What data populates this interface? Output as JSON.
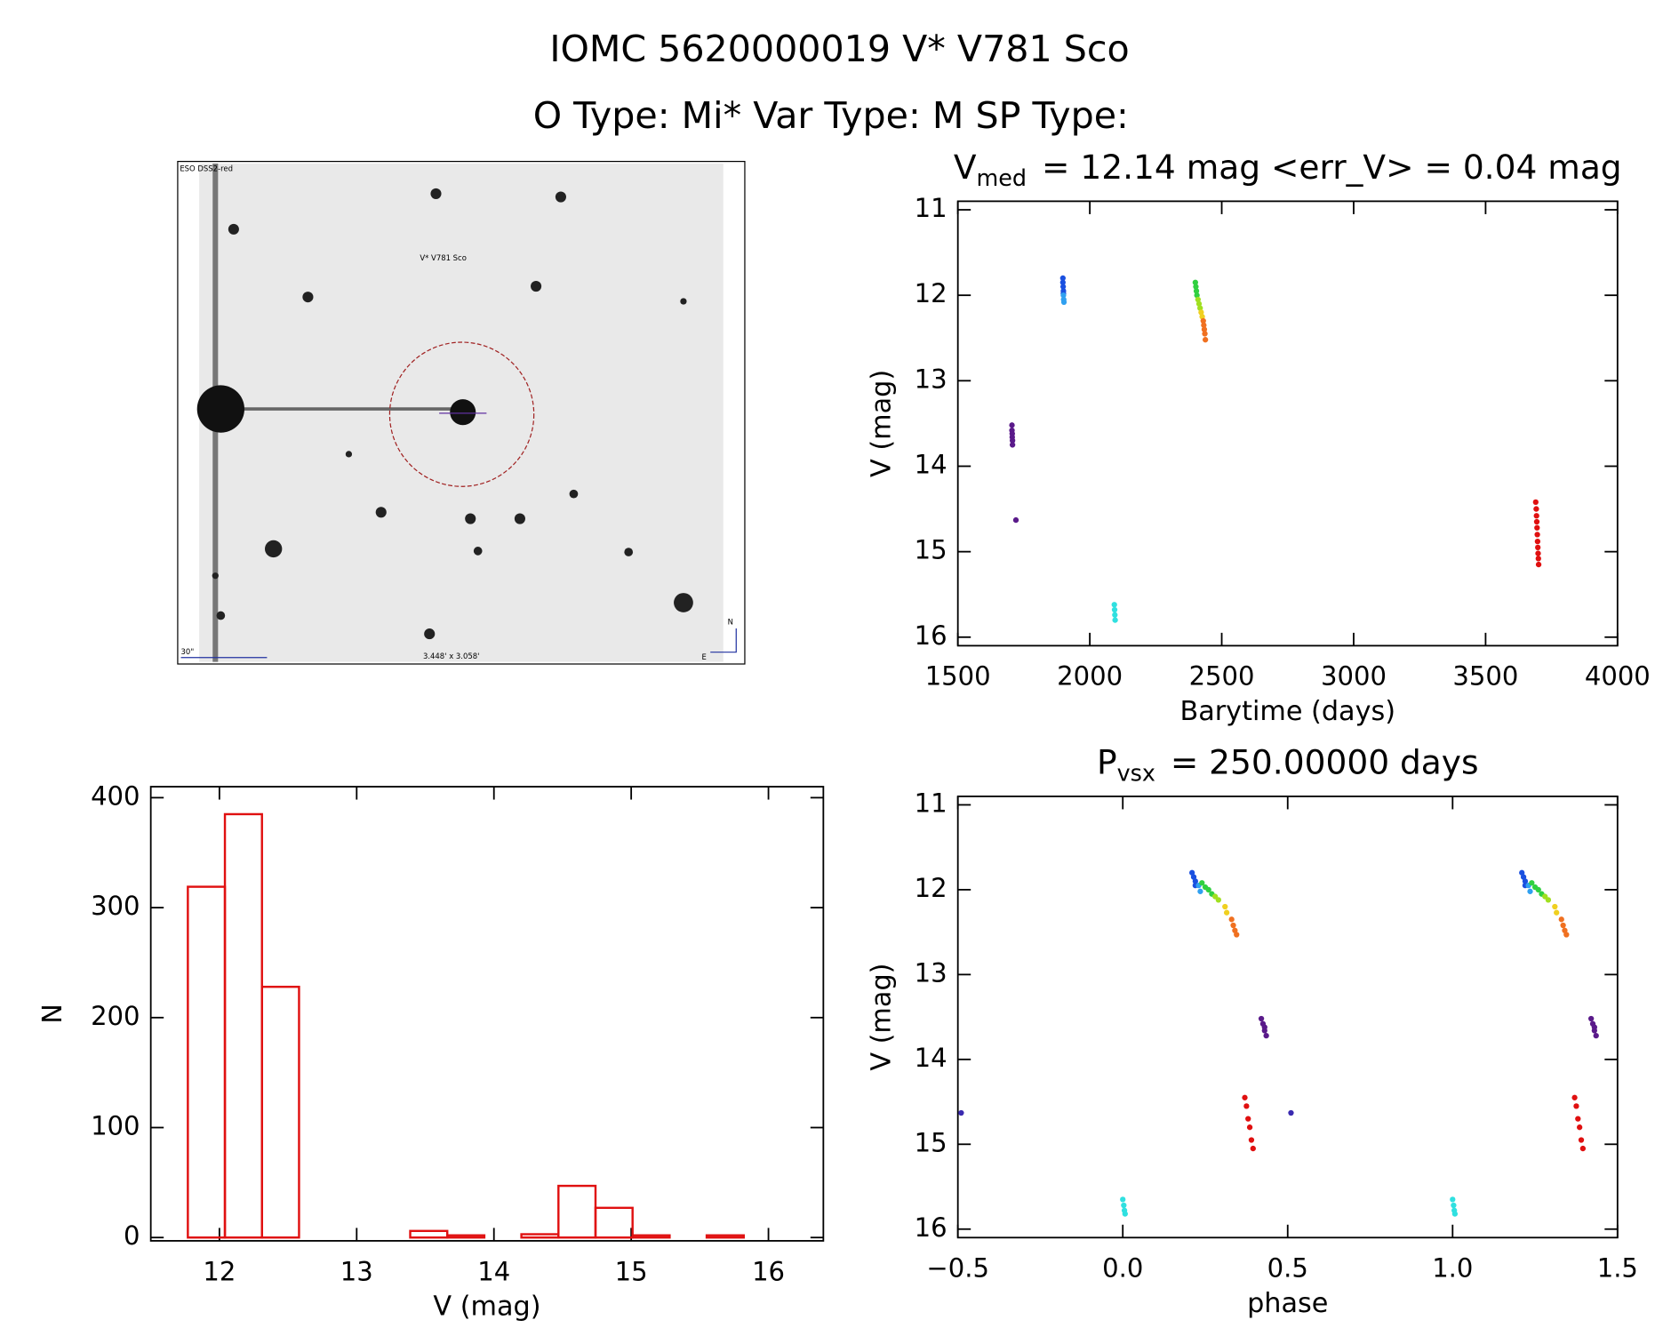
{
  "title": "IOMC 5620000019   V* V781 Sco",
  "subtitle": "O Type: Mi*  Var Type: M  SP Type:",
  "image": {
    "survey": "ESO DSS2-red",
    "target": "V* V781 Sco",
    "scale": "30\"",
    "size": "3.448' x 3.058'",
    "north": "N",
    "east": "E"
  },
  "chart_data": [
    {
      "type": "scatter",
      "title": [
        "V",
        "med",
        "= 12.14 mag <err_V> = 0.04 mag"
      ],
      "x_label": "Barytime (days)",
      "y_label": "V (mag)",
      "xlim": [
        1500,
        4000
      ],
      "xticks": [
        1500,
        2000,
        2500,
        3000,
        3500,
        4000
      ],
      "ylim": [
        16.1,
        10.9
      ],
      "yticks": [
        11,
        12,
        13,
        14,
        15,
        16
      ],
      "series": [
        {
          "color": "#5a1a8a",
          "x": [
            1705,
            1705,
            1706,
            1706,
            1707,
            1707,
            1720
          ],
          "values": [
            13.52,
            13.58,
            13.62,
            13.66,
            13.7,
            13.75,
            14.63
          ]
        },
        {
          "color": "#1a50e0",
          "x": [
            1898,
            1898,
            1899,
            1900,
            1900
          ],
          "values": [
            11.8,
            11.85,
            11.9,
            11.95,
            11.98
          ]
        },
        {
          "color": "#30a0f0",
          "x": [
            1900,
            1901,
            1902
          ],
          "values": [
            12.0,
            12.05,
            12.08
          ]
        },
        {
          "color": "#30e0e0",
          "x": [
            2093,
            2094,
            2095,
            2096
          ],
          "values": [
            15.62,
            15.68,
            15.74,
            15.8
          ]
        },
        {
          "color": "#30d040",
          "x": [
            2400,
            2402,
            2404,
            2406
          ],
          "values": [
            11.85,
            11.9,
            11.95,
            12.0
          ]
        },
        {
          "color": "#a0e020",
          "x": [
            2410,
            2414,
            2418
          ],
          "values": [
            12.05,
            12.1,
            12.15
          ]
        },
        {
          "color": "#f0d020",
          "x": [
            2422,
            2426
          ],
          "values": [
            12.2,
            12.25
          ]
        },
        {
          "color": "#f07020",
          "x": [
            2430,
            2432,
            2434,
            2436,
            2438
          ],
          "values": [
            12.3,
            12.35,
            12.4,
            12.45,
            12.52
          ]
        },
        {
          "color": "#e01010",
          "x": [
            3690,
            3692,
            3693,
            3694,
            3695,
            3696,
            3697,
            3698,
            3699,
            3700,
            3701
          ],
          "values": [
            14.42,
            14.5,
            14.58,
            14.65,
            14.72,
            14.8,
            14.88,
            14.95,
            15.02,
            15.08,
            15.15
          ]
        }
      ]
    },
    {
      "type": "scatter",
      "title": [
        "P",
        "vsx",
        "= 250.00000 days"
      ],
      "x_label": "phase",
      "y_label": "V (mag)",
      "xlim": [
        -0.5,
        1.5
      ],
      "xticks": [
        {
          "value": -0.5,
          "label": "−0.5"
        },
        {
          "value": 0,
          "label": "0.0"
        },
        0.5,
        {
          "value": 1,
          "label": "1.0"
        },
        1.5
      ],
      "ylim": [
        16.1,
        10.9
      ],
      "yticks": [
        11,
        12,
        13,
        14,
        15,
        16
      ],
      "series": [
        {
          "color": "#5a1a8a",
          "x": [
            0.42,
            0.425,
            0.43,
            0.43,
            0.435,
            1.42,
            1.425,
            1.43,
            1.43,
            1.435
          ],
          "values": [
            13.52,
            13.58,
            13.62,
            13.66,
            13.72,
            13.52,
            13.58,
            13.62,
            13.66,
            13.72
          ]
        },
        {
          "color": "#3a2ab0",
          "x": [
            -0.49,
            0.51
          ],
          "values": [
            14.63,
            14.63
          ]
        },
        {
          "color": "#1a50e0",
          "x": [
            0.21,
            0.215,
            0.22,
            0.22,
            1.21,
            1.215,
            1.22,
            1.22
          ],
          "values": [
            11.8,
            11.85,
            11.9,
            11.95,
            11.8,
            11.85,
            11.9,
            11.95
          ]
        },
        {
          "color": "#30a0f0",
          "x": [
            0.23,
            0.235,
            1.23,
            1.235
          ],
          "values": [
            11.95,
            12.02,
            11.95,
            12.02
          ]
        },
        {
          "color": "#30e0e0",
          "x": [
            0,
            0.003,
            0.005,
            0.007,
            1,
            1.003,
            1.005,
            1.007
          ],
          "values": [
            15.65,
            15.72,
            15.78,
            15.82,
            15.65,
            15.72,
            15.78,
            15.82
          ]
        },
        {
          "color": "#30d040",
          "x": [
            0.24,
            0.25,
            0.26,
            0.27,
            1.24,
            1.25,
            1.26,
            1.27
          ],
          "values": [
            11.92,
            11.97,
            12.0,
            12.05,
            11.92,
            11.97,
            12.0,
            12.05
          ]
        },
        {
          "color": "#a0e020",
          "x": [
            0.28,
            0.29,
            1.28,
            1.29
          ],
          "values": [
            12.08,
            12.12,
            12.08,
            12.12
          ]
        },
        {
          "color": "#f0d020",
          "x": [
            0.31,
            0.315,
            1.31,
            1.315
          ],
          "values": [
            12.2,
            12.27,
            12.2,
            12.27
          ]
        },
        {
          "color": "#f07020",
          "x": [
            0.33,
            0.335,
            0.34,
            0.345,
            1.33,
            1.335,
            1.34,
            1.345
          ],
          "values": [
            12.35,
            12.42,
            12.48,
            12.53,
            12.35,
            12.42,
            12.48,
            12.53
          ]
        },
        {
          "color": "#e01010",
          "x": [
            0.37,
            0.375,
            0.38,
            0.385,
            0.39,
            0.395,
            1.37,
            1.375,
            1.38,
            1.385,
            1.39,
            1.395
          ],
          "values": [
            14.45,
            14.55,
            14.7,
            14.8,
            14.95,
            15.05,
            14.45,
            14.55,
            14.7,
            14.8,
            14.95,
            15.05
          ]
        }
      ]
    },
    {
      "type": "histogram",
      "x_label": "V (mag)",
      "y_label": "N",
      "color": "#e01010",
      "xlim": [
        11.5,
        16.4
      ],
      "xticks": [
        12,
        13,
        14,
        15,
        16
      ],
      "ylim": [
        -3,
        410
      ],
      "yticks": [
        0,
        100,
        200,
        300,
        400
      ],
      "bins": [
        11.77,
        12.04,
        12.31,
        12.58,
        12.85,
        13.12,
        13.39,
        13.66,
        13.93,
        14.2,
        14.47,
        14.74,
        15.01,
        15.28,
        15.55,
        15.82
      ],
      "values": [
        319,
        385,
        228,
        0,
        0,
        0,
        6,
        2,
        0,
        3,
        47,
        27,
        2,
        0,
        2
      ]
    }
  ]
}
